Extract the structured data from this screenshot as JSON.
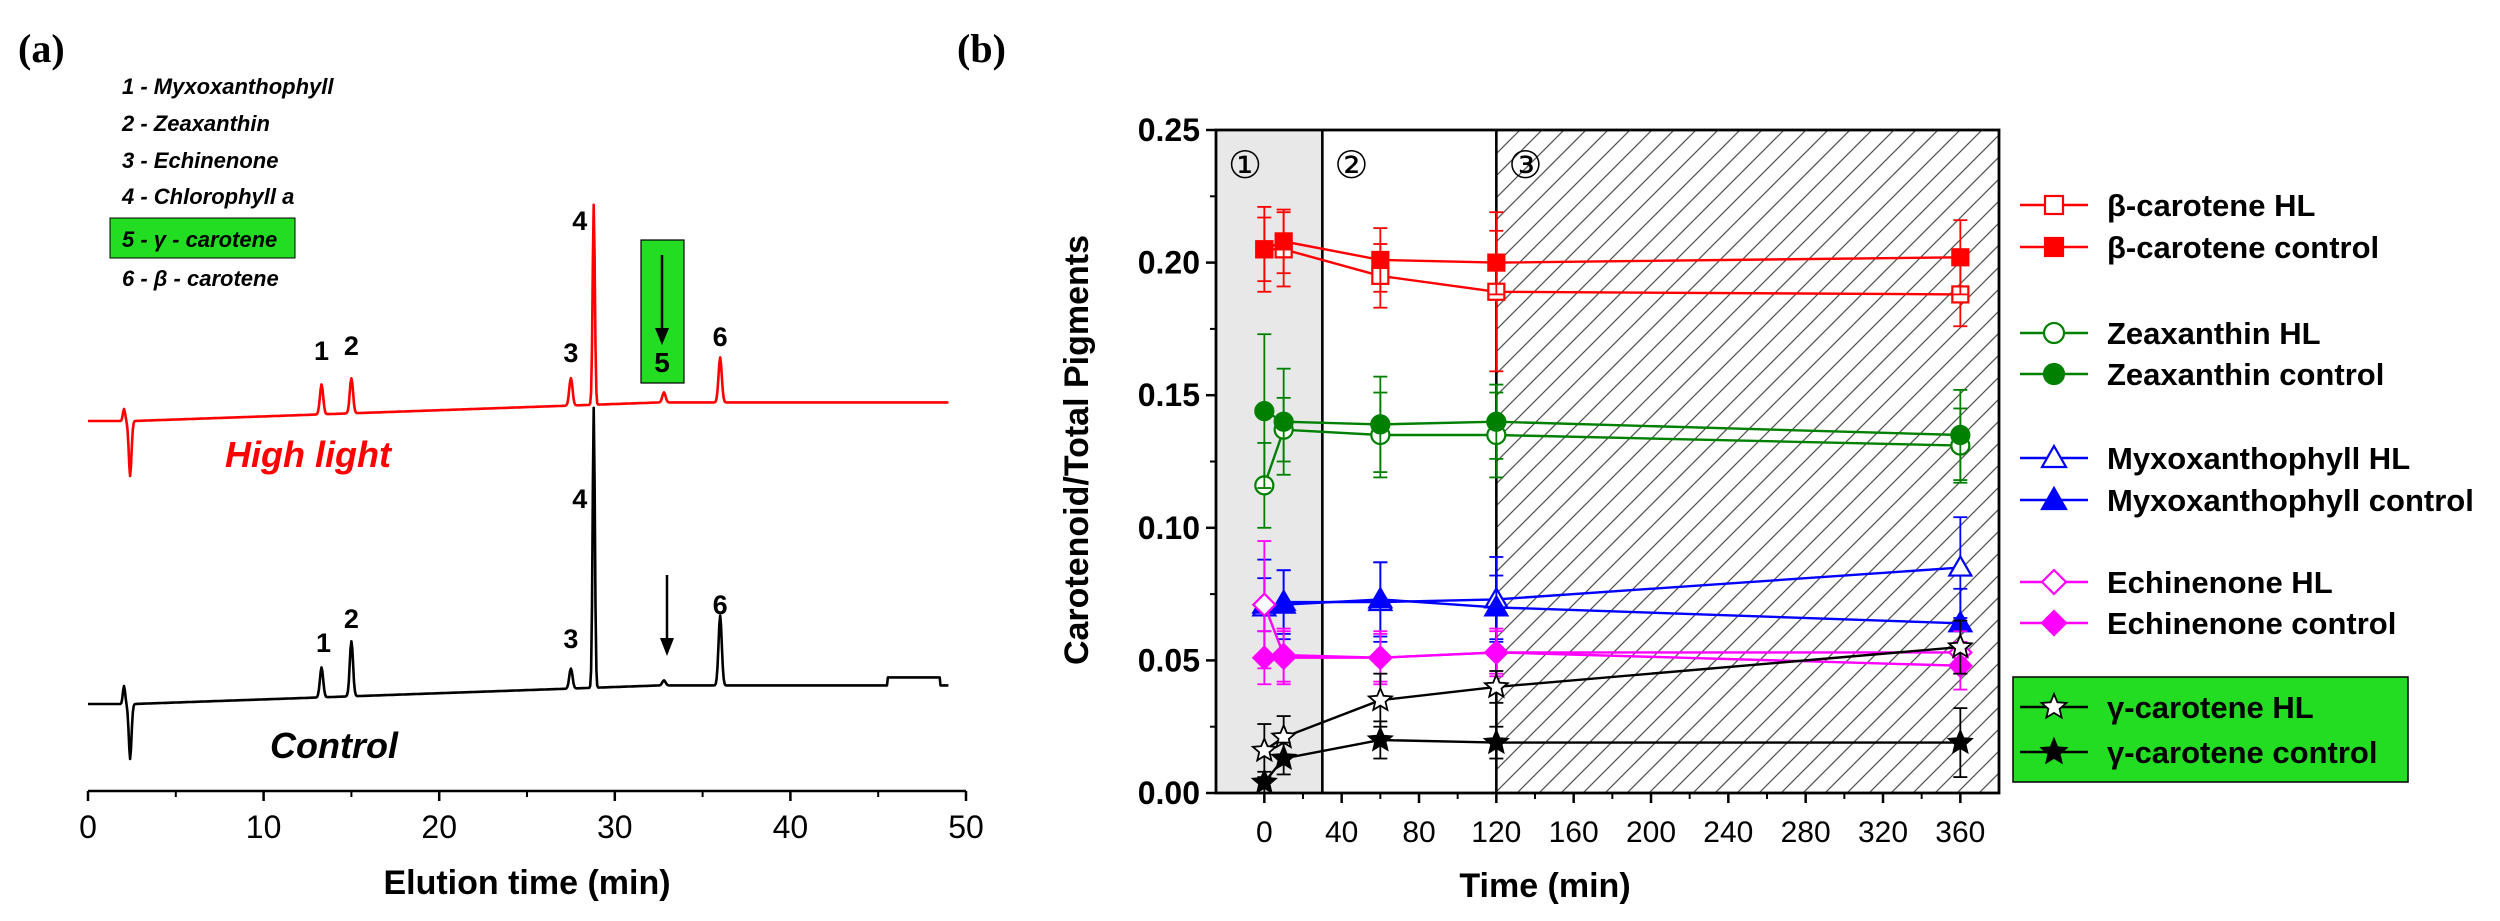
{
  "panel_a": {
    "label": "(a)",
    "peak_legend": [
      "1 - Myxoxanthophyll",
      "2 -  Zeaxanthin",
      "3 - Echinenone",
      "4 - Chlorophyll a",
      "5 - γ - carotene",
      "6 - β - carotene"
    ],
    "trace_labels": {
      "high_light": "High light",
      "control": "Control"
    },
    "peak_box_label": "5",
    "colors": {
      "high_light": "#ff0000",
      "control": "#000000",
      "highlight": "#22dd22"
    }
  },
  "panel_b": {
    "label": "(b)",
    "zone_labels": [
      "①",
      "②",
      "③"
    ],
    "legend": [
      {
        "label": "β-carotene HL",
        "color": "#ff0000",
        "marker": "square-open"
      },
      {
        "label": "β-carotene control",
        "color": "#ff0000",
        "marker": "square-filled"
      },
      {
        "label": "Zeaxanthin HL",
        "color": "#008000",
        "marker": "circle-open"
      },
      {
        "label": "Zeaxanthin control",
        "color": "#008000",
        "marker": "circle-filled"
      },
      {
        "label": "Myxoxanthophyll HL",
        "color": "#0000ff",
        "marker": "triangle-open"
      },
      {
        "label": "Myxoxanthophyll control",
        "color": "#0000ff",
        "marker": "triangle-filled"
      },
      {
        "label": "Echinenone HL",
        "color": "#ff00ff",
        "marker": "diamond-open"
      },
      {
        "label": "Echinenone control",
        "color": "#ff00ff",
        "marker": "diamond-filled"
      },
      {
        "label": "γ-carotene HL",
        "color": "#000000",
        "marker": "star-open"
      },
      {
        "label": "γ-carotene control",
        "color": "#000000",
        "marker": "star-filled"
      }
    ]
  },
  "chart_data": [
    {
      "type": "line",
      "title": "",
      "xlabel": "Elution time (min)",
      "ylabel": "",
      "xlim": [
        0,
        50
      ],
      "xticks": [
        0,
        10,
        20,
        30,
        40,
        50
      ],
      "series": [
        {
          "name": "High light",
          "peaks": [
            {
              "label": "1",
              "x": 13.3,
              "height": 0.6
            },
            {
              "label": "2",
              "x": 15.0,
              "height": 0.7
            },
            {
              "label": "3",
              "x": 27.5,
              "height": 0.55
            },
            {
              "label": "4",
              "x": 28.8,
              "height": 4.0
            },
            {
              "label": "5",
              "x": 32.8,
              "height": 0.2
            },
            {
              "label": "6",
              "x": 36.0,
              "height": 0.9
            }
          ]
        },
        {
          "name": "Control",
          "peaks": [
            {
              "label": "1",
              "x": 13.3,
              "height": 0.6
            },
            {
              "label": "2",
              "x": 15.0,
              "height": 1.1
            },
            {
              "label": "3",
              "x": 27.5,
              "height": 0.4
            },
            {
              "label": "4",
              "x": 28.8,
              "height": 5.6
            },
            {
              "label": "5",
              "x": 32.8,
              "height": 0.1
            },
            {
              "label": "6",
              "x": 36.0,
              "height": 1.4
            }
          ]
        }
      ]
    },
    {
      "type": "line",
      "title": "",
      "xlabel": "Time (min)",
      "ylabel": "Carotenoid/Total Pigments",
      "xlim": [
        -25,
        380
      ],
      "ylim": [
        0,
        0.25
      ],
      "xticks": [
        0,
        40,
        80,
        120,
        160,
        200,
        240,
        280,
        320,
        360
      ],
      "yticks": [
        0.0,
        0.05,
        0.1,
        0.15,
        0.2,
        0.25
      ],
      "ytick_labels": [
        "0.00",
        "0.05",
        "0.10",
        "0.15",
        "0.20",
        "0.25"
      ],
      "zones": [
        {
          "from": -25,
          "to": 30
        },
        {
          "from": 30,
          "to": 120
        },
        {
          "from": 120,
          "to": 380
        }
      ],
      "x": [
        0,
        10,
        60,
        120,
        360
      ],
      "series": [
        {
          "name": "β-carotene HL",
          "values": [
            0.205,
            0.205,
            0.195,
            0.189,
            0.188
          ],
          "err": [
            0.012,
            0.014,
            0.012,
            0.03,
            0.012
          ]
        },
        {
          "name": "β-carotene control",
          "values": [
            0.205,
            0.208,
            0.201,
            0.2,
            0.202
          ],
          "err": [
            0.016,
            0.012,
            0.012,
            0.012,
            0.014
          ]
        },
        {
          "name": "Zeaxanthin HL",
          "values": [
            0.116,
            0.137,
            0.135,
            0.135,
            0.131
          ],
          "err": [
            0.016,
            0.012,
            0.016,
            0.016,
            0.014
          ]
        },
        {
          "name": "Zeaxanthin control",
          "values": [
            0.144,
            0.14,
            0.139,
            0.14,
            0.135
          ],
          "err": [
            0.029,
            0.02,
            0.018,
            0.014,
            0.017
          ]
        },
        {
          "name": "Myxoxanthophyll HL",
          "values": [
            0.07,
            0.072,
            0.072,
            0.073,
            0.085
          ],
          "err": [
            0.018,
            0.012,
            0.015,
            0.016,
            0.019
          ]
        },
        {
          "name": "Myxoxanthophyll control",
          "values": [
            0.071,
            0.071,
            0.073,
            0.07,
            0.064
          ],
          "err": [
            0.01,
            0.013,
            0.014,
            0.012,
            0.013
          ]
        },
        {
          "name": "Echinenone HL",
          "values": [
            0.071,
            0.052,
            0.051,
            0.053,
            0.053
          ],
          "err": [
            0.024,
            0.01,
            0.01,
            0.008,
            0.008
          ]
        },
        {
          "name": "Echinenone control",
          "values": [
            0.051,
            0.051,
            0.051,
            0.053,
            0.048
          ],
          "err": [
            0.01,
            0.01,
            0.009,
            0.009,
            0.009
          ]
        },
        {
          "name": "γ-carotene HL",
          "values": [
            0.016,
            0.021,
            0.035,
            0.04,
            0.055
          ],
          "err": [
            0.01,
            0.008,
            0.01,
            0.006,
            0.01
          ]
        },
        {
          "name": "γ-carotene control",
          "values": [
            0.004,
            0.013,
            0.02,
            0.019,
            0.019
          ],
          "err": [
            0.004,
            0.006,
            0.007,
            0.006,
            0.013
          ]
        }
      ]
    }
  ]
}
